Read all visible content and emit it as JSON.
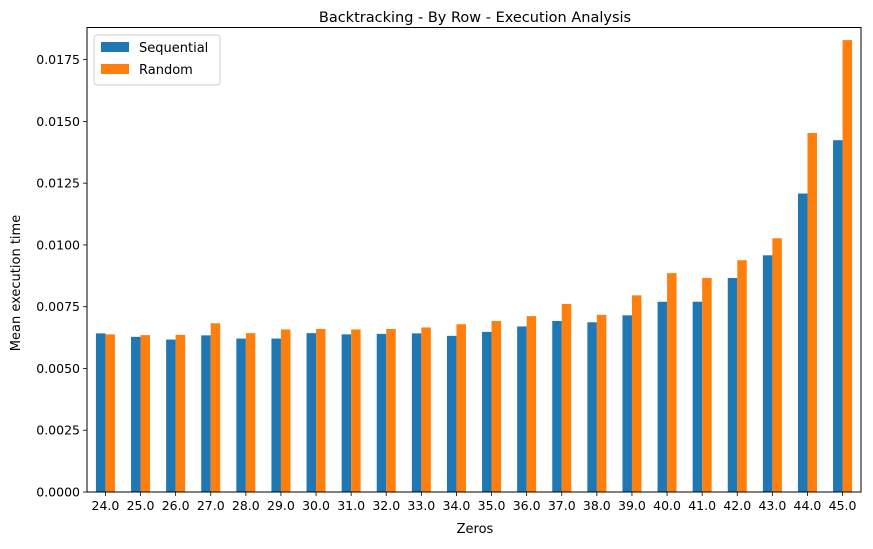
{
  "chart_data": {
    "type": "bar",
    "title": "Backtracking - By Row - Execution Analysis",
    "xlabel": "Zeros",
    "ylabel": "Mean execution time",
    "ylim": [
      0,
      0.0188
    ],
    "yticks": [
      "0.0000",
      "0.0025",
      "0.0050",
      "0.0075",
      "0.0100",
      "0.0125",
      "0.0150",
      "0.0175"
    ],
    "ytick_values": [
      0,
      0.0025,
      0.005,
      0.0075,
      0.01,
      0.0125,
      0.015,
      0.0175
    ],
    "categories": [
      "24.0",
      "25.0",
      "26.0",
      "27.0",
      "28.0",
      "29.0",
      "30.0",
      "31.0",
      "32.0",
      "33.0",
      "34.0",
      "35.0",
      "36.0",
      "37.0",
      "38.0",
      "39.0",
      "40.0",
      "41.0",
      "42.0",
      "43.0",
      "44.0",
      "45.0"
    ],
    "series": [
      {
        "name": "Sequential",
        "color": "#1f77b4",
        "values": [
          0.00642,
          0.00628,
          0.00617,
          0.00634,
          0.00621,
          0.00621,
          0.00643,
          0.00638,
          0.0064,
          0.00642,
          0.00632,
          0.00648,
          0.0067,
          0.00692,
          0.00687,
          0.00715,
          0.0077,
          0.0077,
          0.00866,
          0.00958,
          0.01208,
          0.01424
        ]
      },
      {
        "name": "Random",
        "color": "#ff7f0e",
        "values": [
          0.00638,
          0.00635,
          0.00636,
          0.00683,
          0.00643,
          0.00658,
          0.0066,
          0.00658,
          0.0066,
          0.00666,
          0.00679,
          0.00692,
          0.00712,
          0.00761,
          0.00717,
          0.00796,
          0.00886,
          0.00866,
          0.00938,
          0.01027,
          0.01453,
          0.01829
        ]
      }
    ],
    "legend_position": "top-left",
    "grid": false
  }
}
